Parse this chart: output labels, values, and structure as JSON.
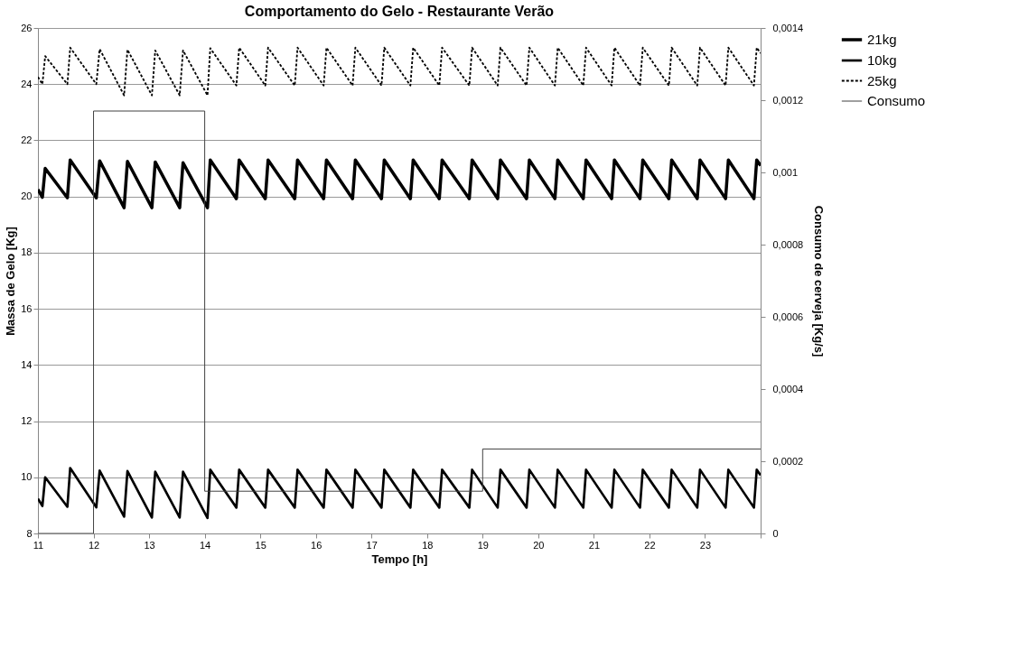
{
  "chart_data": {
    "type": "line",
    "title": "Comportamento do Gelo - Restaurante Verão",
    "xlabel": "Tempo [h]",
    "ylabel": "Massa de Gelo [Kg]",
    "y2label": "Consumo de cerveja [Kg/s]",
    "xlim": [
      11,
      24
    ],
    "xticks": [
      11,
      12,
      13,
      14,
      15,
      16,
      17,
      18,
      19,
      20,
      21,
      22,
      23,
      {
        "value": 24,
        "label": null
      }
    ],
    "ylim": [
      8,
      26
    ],
    "yticks": [
      8,
      10,
      12,
      14,
      16,
      18,
      20,
      22,
      24,
      26
    ],
    "y2lim": [
      0,
      0.0014
    ],
    "y2ticks": [
      0,
      {
        "value": 0.0002,
        "label": "0,0002"
      },
      {
        "value": 0.0004,
        "label": "0,0004"
      },
      {
        "value": 0.0006,
        "label": "0,0006"
      },
      {
        "value": 0.0008,
        "label": "0,0008"
      },
      {
        "value": 0.001,
        "label": "0,001"
      },
      {
        "value": 0.0012,
        "label": "0,0012"
      },
      {
        "value": 0.0014,
        "label": "0,0014"
      }
    ],
    "grid": "y",
    "legend": "right",
    "series": [
      {
        "name": "21kg",
        "color": "#000000",
        "line_style": "solid",
        "x": [
          11.0,
          11.08,
          11.13,
          11.53,
          11.58,
          12.05,
          12.11,
          12.55,
          12.61,
          13.05,
          13.11,
          13.55,
          13.61,
          14.05,
          14.1,
          14.57,
          14.62,
          15.09,
          15.14,
          15.62,
          15.67,
          16.14,
          16.19,
          16.66,
          16.71,
          17.18,
          17.23,
          17.7,
          17.75,
          18.22,
          18.27,
          18.76,
          18.81,
          19.27,
          19.32,
          19.79,
          19.84,
          20.3,
          20.35,
          20.81,
          20.86,
          21.32,
          21.37,
          21.83,
          21.88,
          22.35,
          22.4,
          22.86,
          22.91,
          23.37,
          23.42,
          23.88,
          23.93,
          24.0
        ],
        "values": [
          20.25,
          19.97,
          21.0,
          19.95,
          21.3,
          19.95,
          21.27,
          19.6,
          21.25,
          19.6,
          21.23,
          19.6,
          21.2,
          19.6,
          21.3,
          19.92,
          21.3,
          19.92,
          21.3,
          19.92,
          21.3,
          19.92,
          21.3,
          19.92,
          21.3,
          19.92,
          21.3,
          19.92,
          21.3,
          19.92,
          21.3,
          19.92,
          21.3,
          19.92,
          21.3,
          19.92,
          21.3,
          19.92,
          21.3,
          19.92,
          21.3,
          19.92,
          21.3,
          19.92,
          21.3,
          19.92,
          21.3,
          19.92,
          21.3,
          19.92,
          21.3,
          19.92,
          21.3,
          21.1
        ]
      },
      {
        "name": "10kg",
        "color": "#000000",
        "line_style": "solid",
        "x": [
          11.0,
          11.08,
          11.13,
          11.53,
          11.58,
          12.05,
          12.11,
          12.55,
          12.61,
          13.05,
          13.11,
          13.55,
          13.61,
          14.05,
          14.1,
          14.57,
          14.62,
          15.09,
          15.14,
          15.62,
          15.67,
          16.14,
          16.19,
          16.66,
          16.71,
          17.18,
          17.23,
          17.7,
          17.75,
          18.22,
          18.27,
          18.76,
          18.81,
          19.27,
          19.32,
          19.79,
          19.84,
          20.3,
          20.35,
          20.81,
          20.86,
          21.32,
          21.37,
          21.83,
          21.88,
          22.35,
          22.4,
          22.86,
          22.91,
          23.37,
          23.42,
          23.88,
          23.93,
          24.0
        ],
        "values": [
          9.24,
          8.98,
          10.0,
          8.95,
          10.33,
          8.93,
          10.24,
          8.6,
          10.22,
          8.57,
          10.2,
          8.57,
          10.2,
          8.55,
          10.27,
          8.92,
          10.27,
          8.92,
          10.27,
          8.92,
          10.27,
          8.92,
          10.27,
          8.92,
          10.27,
          8.92,
          10.27,
          8.92,
          10.27,
          8.92,
          10.27,
          8.92,
          10.27,
          8.92,
          10.27,
          8.92,
          10.27,
          8.92,
          10.27,
          8.92,
          10.27,
          8.92,
          10.27,
          8.92,
          10.27,
          8.92,
          10.27,
          8.92,
          10.27,
          8.92,
          10.27,
          8.92,
          10.27,
          10.07
        ]
      },
      {
        "name": "25kg",
        "color": "#000000",
        "line_style": "dashed",
        "x": [
          11.0,
          11.08,
          11.13,
          11.53,
          11.58,
          12.05,
          12.11,
          12.55,
          12.61,
          13.05,
          13.11,
          13.55,
          13.61,
          14.05,
          14.1,
          14.57,
          14.62,
          15.09,
          15.14,
          15.62,
          15.67,
          16.14,
          16.19,
          16.66,
          16.71,
          17.18,
          17.23,
          17.7,
          17.75,
          18.22,
          18.27,
          18.76,
          18.81,
          19.27,
          19.32,
          19.79,
          19.84,
          20.3,
          20.35,
          20.81,
          20.86,
          21.32,
          21.37,
          21.83,
          21.88,
          22.35,
          22.4,
          22.86,
          22.91,
          23.37,
          23.42,
          23.88,
          23.93,
          24.0
        ],
        "values": [
          24.26,
          24.0,
          25.0,
          24.0,
          25.3,
          24.0,
          25.25,
          23.6,
          25.23,
          23.6,
          25.2,
          23.6,
          25.2,
          23.6,
          25.28,
          23.95,
          25.3,
          23.95,
          25.3,
          23.95,
          25.3,
          23.95,
          25.3,
          23.95,
          25.3,
          23.95,
          25.3,
          23.95,
          25.3,
          23.95,
          25.3,
          23.95,
          25.3,
          23.95,
          25.3,
          23.95,
          25.3,
          23.95,
          25.3,
          23.95,
          25.3,
          23.95,
          25.3,
          23.95,
          25.3,
          23.95,
          25.3,
          23.95,
          25.3,
          23.95,
          25.3,
          23.95,
          25.3,
          25.1
        ]
      },
      {
        "name": "Consumo",
        "color": "#404040",
        "line_style": "solid",
        "type": "step",
        "axis": "y2",
        "x": [
          11,
          12,
          14,
          19,
          24
        ],
        "values": [
          0,
          0.00117,
          0.000117,
          0.000234,
          0.000234
        ]
      }
    ]
  }
}
